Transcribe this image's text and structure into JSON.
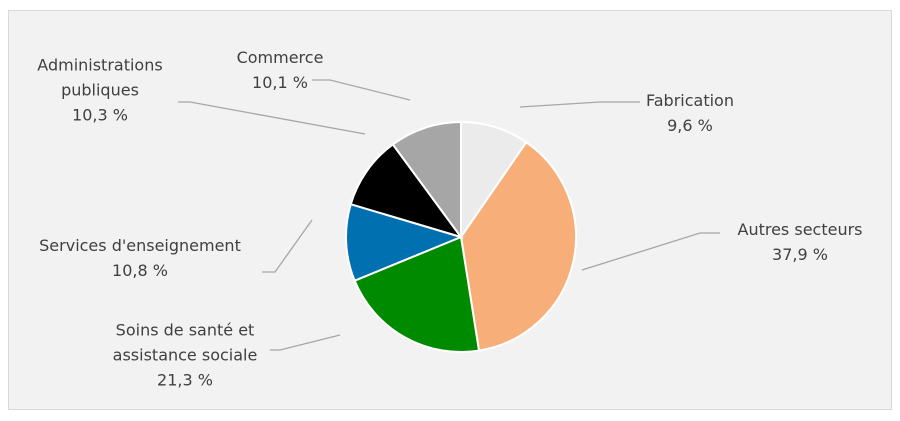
{
  "chart_data": {
    "type": "pie",
    "categories": [
      "Fabrication",
      "Autres secteurs",
      "Soins de santé et assistance sociale",
      "Services d'enseignement",
      "Administrations publiques",
      "Commerce"
    ],
    "values": [
      9.6,
      37.9,
      21.3,
      10.8,
      10.3,
      10.1
    ],
    "value_labels": [
      "9,6 %",
      "37,9 %",
      "21,3 %",
      "10,8 %",
      "10,3 %",
      "10,1 %"
    ],
    "colors": [
      "#ebebeb",
      "#f7ae78",
      "#008a00",
      "#0070b0",
      "#000000",
      "#a6a6a6"
    ]
  }
}
